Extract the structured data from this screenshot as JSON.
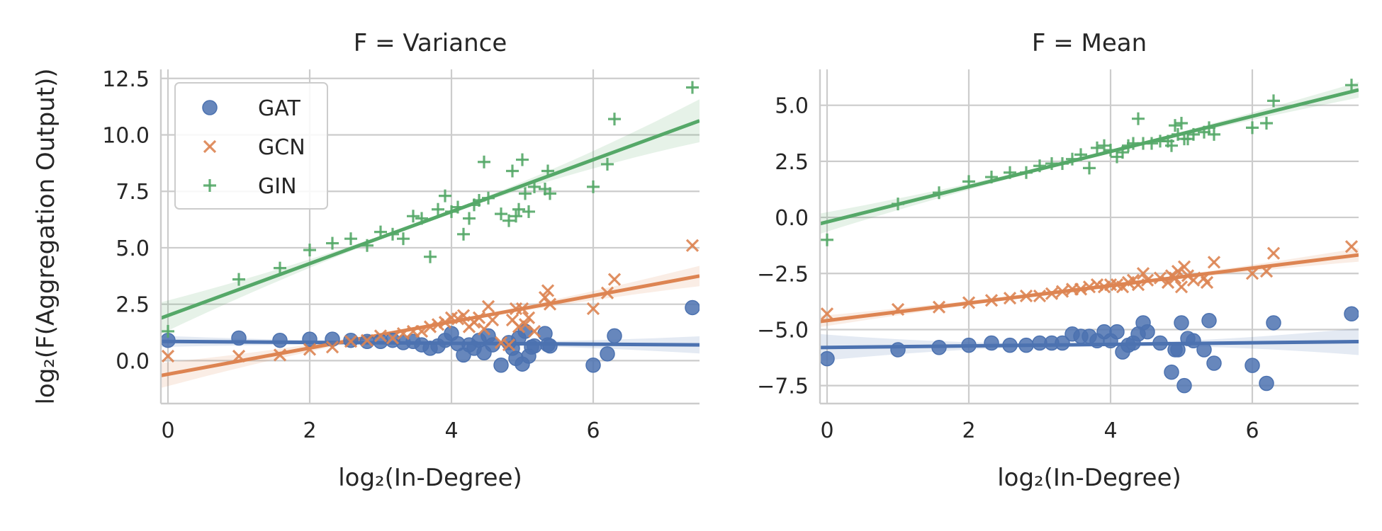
{
  "figure": {
    "ylabel": "log₂(F(Aggregation Output))",
    "legend": {
      "placement": "upper-left of first panel",
      "entries": [
        {
          "name": "GAT",
          "marker": "circle",
          "color": "#4c72b0"
        },
        {
          "name": "GCN",
          "marker": "x",
          "color": "#dd8452"
        },
        {
          "name": "GIN",
          "marker": "plus",
          "color": "#55a868"
        }
      ]
    }
  },
  "chart_data": [
    {
      "type": "scatter",
      "title": "F = Variance",
      "xlabel": "log₂(In-Degree)",
      "ylabel": "log₂(F(Aggregation Output))",
      "xlim": [
        -0.1,
        7.5
      ],
      "ylim": [
        -1.9,
        12.9
      ],
      "xticks": [
        0,
        2,
        4,
        6
      ],
      "yticks": [
        0.0,
        2.5,
        5.0,
        7.5,
        10.0,
        12.5
      ],
      "ytick_labels": [
        "0.0",
        "2.5",
        "5.0",
        "7.5",
        "10.0",
        "12.5"
      ],
      "grid": true,
      "series": [
        {
          "name": "GAT",
          "marker": "circle",
          "color": "#4c72b0",
          "fit": {
            "intercept": 0.85,
            "slope": -0.02,
            "band": [
              0.25,
              0.38
            ]
          },
          "points": [
            [
              0,
              0.9
            ],
            [
              1,
              1.0
            ],
            [
              1.58,
              0.9
            ],
            [
              2,
              0.95
            ],
            [
              2.32,
              0.95
            ],
            [
              2.58,
              0.9
            ],
            [
              2.81,
              0.85
            ],
            [
              3,
              0.85
            ],
            [
              3.17,
              0.9
            ],
            [
              3.32,
              0.8
            ],
            [
              3.46,
              0.85
            ],
            [
              3.58,
              0.7
            ],
            [
              3.7,
              0.55
            ],
            [
              3.81,
              0.65
            ],
            [
              3.91,
              0.9
            ],
            [
              4,
              1.2
            ],
            [
              4.09,
              0.75
            ],
            [
              4.17,
              0.25
            ],
            [
              4.25,
              0.7
            ],
            [
              4.32,
              0.55
            ],
            [
              4.39,
              0.9
            ],
            [
              4.46,
              0.35
            ],
            [
              4.52,
              1.1
            ],
            [
              4.58,
              0.7
            ],
            [
              4.7,
              -0.2
            ],
            [
              4.81,
              0.8
            ],
            [
              4.86,
              0.55
            ],
            [
              4.91,
              0.1
            ],
            [
              4.95,
              1.0
            ],
            [
              5,
              -0.15
            ],
            [
              5.04,
              1.3
            ],
            [
              5.09,
              0.2
            ],
            [
              5.13,
              0.6
            ],
            [
              5.17,
              0.65
            ],
            [
              5.32,
              1.2
            ],
            [
              5.36,
              0.7
            ],
            [
              5.39,
              0.65
            ],
            [
              6,
              -0.2
            ],
            [
              6.2,
              0.3
            ],
            [
              6.3,
              1.1
            ],
            [
              7.4,
              2.35
            ]
          ]
        },
        {
          "name": "GCN",
          "marker": "x",
          "color": "#dd8452",
          "fit": {
            "intercept": -0.6,
            "slope": 0.58,
            "band": [
              0.55,
              0.45
            ]
          },
          "points": [
            [
              0,
              0.2
            ],
            [
              1,
              0.2
            ],
            [
              1.58,
              0.25
            ],
            [
              2,
              0.5
            ],
            [
              2.32,
              0.6
            ],
            [
              2.58,
              0.85
            ],
            [
              2.81,
              0.9
            ],
            [
              3,
              1.1
            ],
            [
              3.17,
              1.0
            ],
            [
              3.32,
              1.2
            ],
            [
              3.46,
              1.3
            ],
            [
              3.58,
              1.3
            ],
            [
              3.7,
              1.5
            ],
            [
              3.81,
              1.6
            ],
            [
              3.91,
              1.7
            ],
            [
              4,
              1.9
            ],
            [
              4.09,
              1.85
            ],
            [
              4.17,
              2.0
            ],
            [
              4.25,
              1.5
            ],
            [
              4.32,
              1.7
            ],
            [
              4.39,
              1.9
            ],
            [
              4.46,
              1.4
            ],
            [
              4.52,
              2.4
            ],
            [
              4.58,
              1.8
            ],
            [
              4.7,
              0.8
            ],
            [
              4.81,
              0.7
            ],
            [
              4.86,
              1.8
            ],
            [
              4.91,
              2.3
            ],
            [
              4.95,
              1.5
            ],
            [
              5,
              2.3
            ],
            [
              5.04,
              1.6
            ],
            [
              5.09,
              1.9
            ],
            [
              5.17,
              1.3
            ],
            [
              5.32,
              2.8
            ],
            [
              5.36,
              3.1
            ],
            [
              5.39,
              2.5
            ],
            [
              6,
              2.3
            ],
            [
              6.2,
              3.0
            ],
            [
              6.3,
              3.6
            ],
            [
              7.4,
              5.1
            ]
          ]
        },
        {
          "name": "GIN",
          "marker": "plus",
          "color": "#55a868",
          "fit": {
            "intercept": 2.0,
            "slope": 1.15,
            "band": [
              0.7,
              0.95
            ]
          },
          "points": [
            [
              0,
              1.3
            ],
            [
              1,
              3.6
            ],
            [
              1.58,
              4.1
            ],
            [
              2,
              4.9
            ],
            [
              2.32,
              5.2
            ],
            [
              2.58,
              5.4
            ],
            [
              2.81,
              5.1
            ],
            [
              3,
              5.7
            ],
            [
              3.17,
              5.6
            ],
            [
              3.32,
              5.4
            ],
            [
              3.46,
              6.4
            ],
            [
              3.58,
              6.3
            ],
            [
              3.7,
              4.6
            ],
            [
              3.81,
              6.7
            ],
            [
              3.91,
              7.3
            ],
            [
              4,
              6.6
            ],
            [
              4.09,
              6.8
            ],
            [
              4.17,
              5.6
            ],
            [
              4.25,
              6.3
            ],
            [
              4.32,
              6.9
            ],
            [
              4.39,
              7.1
            ],
            [
              4.46,
              8.8
            ],
            [
              4.52,
              7.2
            ],
            [
              4.7,
              6.5
            ],
            [
              4.81,
              6.2
            ],
            [
              4.86,
              8.4
            ],
            [
              4.91,
              6.4
            ],
            [
              4.95,
              6.7
            ],
            [
              5,
              8.9
            ],
            [
              5.04,
              7.4
            ],
            [
              5.09,
              6.6
            ],
            [
              5.17,
              7.7
            ],
            [
              5.32,
              7.6
            ],
            [
              5.36,
              8.4
            ],
            [
              5.39,
              7.4
            ],
            [
              6,
              7.7
            ],
            [
              6.2,
              8.7
            ],
            [
              6.3,
              10.7
            ],
            [
              7.4,
              12.1
            ]
          ]
        }
      ]
    },
    {
      "type": "scatter",
      "title": "F = Mean",
      "xlabel": "log₂(In-Degree)",
      "ylabel": "",
      "xlim": [
        -0.1,
        7.5
      ],
      "ylim": [
        -8.3,
        6.6
      ],
      "xticks": [
        0,
        2,
        4,
        6
      ],
      "yticks": [
        -7.5,
        -5.0,
        -2.5,
        0.0,
        2.5,
        5.0
      ],
      "ytick_labels": [
        "−7.5",
        "−5.0",
        "−2.5",
        "0.0",
        "2.5",
        "5.0"
      ],
      "grid": true,
      "series": [
        {
          "name": "GAT",
          "marker": "circle",
          "color": "#4c72b0",
          "fit": {
            "intercept": -5.8,
            "slope": 0.035,
            "band": [
              0.6,
              0.6
            ]
          },
          "points": [
            [
              0,
              -6.3
            ],
            [
              1,
              -5.9
            ],
            [
              1.58,
              -5.8
            ],
            [
              2,
              -5.7
            ],
            [
              2.32,
              -5.6
            ],
            [
              2.58,
              -5.7
            ],
            [
              2.81,
              -5.7
            ],
            [
              3,
              -5.6
            ],
            [
              3.17,
              -5.6
            ],
            [
              3.32,
              -5.6
            ],
            [
              3.46,
              -5.2
            ],
            [
              3.58,
              -5.3
            ],
            [
              3.7,
              -5.3
            ],
            [
              3.81,
              -5.5
            ],
            [
              3.91,
              -5.1
            ],
            [
              4,
              -5.5
            ],
            [
              4.09,
              -5.1
            ],
            [
              4.17,
              -6.0
            ],
            [
              4.25,
              -5.7
            ],
            [
              4.32,
              -5.6
            ],
            [
              4.39,
              -5.2
            ],
            [
              4.46,
              -4.7
            ],
            [
              4.52,
              -5.1
            ],
            [
              4.7,
              -5.6
            ],
            [
              4.86,
              -6.9
            ],
            [
              4.91,
              -5.9
            ],
            [
              4.95,
              -5.9
            ],
            [
              5,
              -4.7
            ],
            [
              5.04,
              -7.5
            ],
            [
              5.09,
              -5.4
            ],
            [
              5.17,
              -5.5
            ],
            [
              5.32,
              -5.9
            ],
            [
              5.39,
              -4.6
            ],
            [
              5.46,
              -6.5
            ],
            [
              6,
              -6.6
            ],
            [
              6.2,
              -7.4
            ],
            [
              6.3,
              -4.7
            ],
            [
              7.4,
              -4.3
            ]
          ]
        },
        {
          "name": "GCN",
          "marker": "x",
          "color": "#dd8452",
          "fit": {
            "intercept": -4.6,
            "slope": 0.39,
            "band": [
              0.25,
              0.3
            ]
          },
          "points": [
            [
              0,
              -4.3
            ],
            [
              1,
              -4.1
            ],
            [
              1.58,
              -4.0
            ],
            [
              2,
              -3.8
            ],
            [
              2.32,
              -3.7
            ],
            [
              2.58,
              -3.6
            ],
            [
              2.81,
              -3.5
            ],
            [
              3,
              -3.5
            ],
            [
              3.17,
              -3.4
            ],
            [
              3.32,
              -3.3
            ],
            [
              3.46,
              -3.2
            ],
            [
              3.58,
              -3.2
            ],
            [
              3.7,
              -3.1
            ],
            [
              3.81,
              -3.0
            ],
            [
              3.91,
              -3.1
            ],
            [
              4,
              -3.0
            ],
            [
              4.09,
              -3.0
            ],
            [
              4.17,
              -3.1
            ],
            [
              4.25,
              -2.9
            ],
            [
              4.32,
              -2.8
            ],
            [
              4.39,
              -3.0
            ],
            [
              4.46,
              -2.5
            ],
            [
              4.52,
              -2.8
            ],
            [
              4.7,
              -2.7
            ],
            [
              4.81,
              -2.9
            ],
            [
              4.86,
              -2.6
            ],
            [
              4.91,
              -2.7
            ],
            [
              4.95,
              -2.4
            ],
            [
              5,
              -3.1
            ],
            [
              5.04,
              -2.2
            ],
            [
              5.09,
              -2.6
            ],
            [
              5.17,
              -2.8
            ],
            [
              5.32,
              -2.7
            ],
            [
              5.36,
              -2.9
            ],
            [
              5.46,
              -2.0
            ],
            [
              6,
              -2.5
            ],
            [
              6.2,
              -2.4
            ],
            [
              6.3,
              -1.6
            ],
            [
              7.4,
              -1.3
            ]
          ]
        },
        {
          "name": "GIN",
          "marker": "plus",
          "color": "#55a868",
          "fit": {
            "intercept": -0.2,
            "slope": 0.785,
            "band": [
              0.45,
              0.35
            ]
          },
          "points": [
            [
              0,
              -1.0
            ],
            [
              1,
              0.6
            ],
            [
              1.58,
              1.1
            ],
            [
              2,
              1.6
            ],
            [
              2.32,
              1.8
            ],
            [
              2.58,
              2.0
            ],
            [
              2.81,
              2.0
            ],
            [
              3,
              2.3
            ],
            [
              3.17,
              2.4
            ],
            [
              3.32,
              2.4
            ],
            [
              3.46,
              2.6
            ],
            [
              3.58,
              2.8
            ],
            [
              3.7,
              2.2
            ],
            [
              3.81,
              3.1
            ],
            [
              3.91,
              3.2
            ],
            [
              4,
              3.0
            ],
            [
              4.09,
              2.7
            ],
            [
              4.17,
              2.9
            ],
            [
              4.25,
              3.2
            ],
            [
              4.32,
              3.3
            ],
            [
              4.39,
              4.4
            ],
            [
              4.46,
              3.3
            ],
            [
              4.58,
              3.3
            ],
            [
              4.7,
              3.4
            ],
            [
              4.81,
              3.4
            ],
            [
              4.86,
              3.2
            ],
            [
              4.91,
              4.1
            ],
            [
              4.95,
              3.7
            ],
            [
              5,
              4.2
            ],
            [
              5.04,
              3.5
            ],
            [
              5.09,
              3.5
            ],
            [
              5.17,
              3.7
            ],
            [
              5.32,
              3.8
            ],
            [
              5.39,
              4.0
            ],
            [
              5.46,
              3.7
            ],
            [
              6,
              4.0
            ],
            [
              6.2,
              4.2
            ],
            [
              6.3,
              5.2
            ],
            [
              7.4,
              5.9
            ]
          ]
        }
      ]
    }
  ]
}
